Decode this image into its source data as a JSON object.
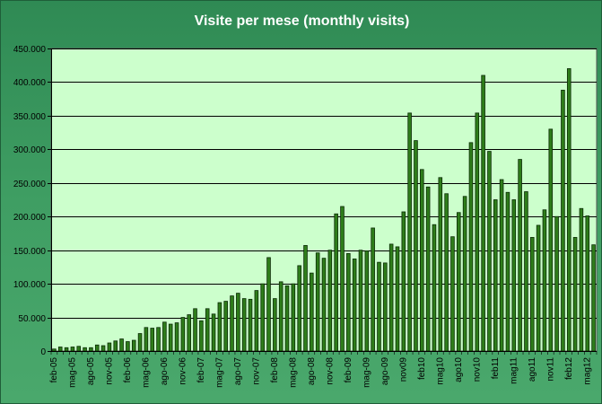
{
  "chart_data": {
    "type": "bar",
    "title": "Visite per mese (monthly visits)",
    "xlabel": "",
    "ylabel": "",
    "ylim": [
      0,
      450000
    ],
    "yticks": [
      {
        "value": 0,
        "label": "0"
      },
      {
        "value": 50000,
        "label": "50.000"
      },
      {
        "value": 100000,
        "label": "100.000"
      },
      {
        "value": 150000,
        "label": "150.000"
      },
      {
        "value": 200000,
        "label": "200.000"
      },
      {
        "value": 250000,
        "label": "250.000"
      },
      {
        "value": 300000,
        "label": "300.000"
      },
      {
        "value": 350000,
        "label": "350.000"
      },
      {
        "value": 400000,
        "label": "400.000"
      },
      {
        "value": 450000,
        "label": "450.000"
      }
    ],
    "grid": true,
    "tick_labels": [
      "feb-05",
      "mag-05",
      "ago-05",
      "nov-05",
      "feb-06",
      "mag-06",
      "ago-06",
      "nov-06",
      "feb-07",
      "mag-07",
      "ago-07",
      "nov-07",
      "feb-08",
      "mag-08",
      "ago-08",
      "nov-08",
      "feb-09",
      "mag-09",
      "ago-09",
      "nov09",
      "feb10",
      "mag10",
      "ago10",
      "nov10",
      "feb11",
      "mag11",
      "ago11",
      "nov11",
      "feb12",
      "mag12"
    ],
    "values": [
      3000,
      6000,
      5000,
      6000,
      7000,
      5000,
      5000,
      9000,
      8000,
      12000,
      15000,
      18000,
      14000,
      16000,
      26000,
      35000,
      34000,
      35000,
      43000,
      40000,
      42000,
      50000,
      54000,
      63000,
      45000,
      63000,
      55000,
      72000,
      74000,
      82000,
      86000,
      78000,
      77000,
      90000,
      100000,
      139000,
      78000,
      103000,
      97000,
      100000,
      127000,
      157000,
      116000,
      146000,
      138000,
      150000,
      204000,
      215000,
      145000,
      137000,
      150000,
      149000,
      183000,
      132000,
      131000,
      159000,
      155000,
      207000,
      354000,
      313000,
      270000,
      244000,
      188000,
      258000,
      234000,
      170000,
      206000,
      230000,
      310000,
      354000,
      410000,
      297000,
      225000,
      255000,
      236000,
      225000,
      285000,
      237000,
      169000,
      187000,
      210000,
      330000,
      200000,
      388000,
      420000,
      169000,
      212000,
      201000,
      158000
    ]
  }
}
